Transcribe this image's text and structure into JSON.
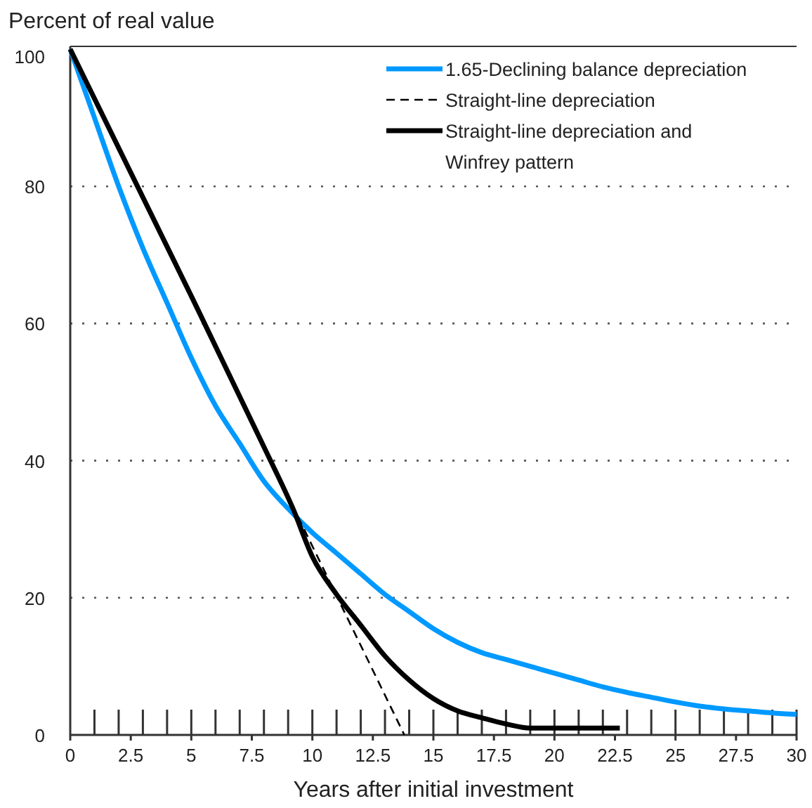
{
  "chart_data": {
    "type": "line",
    "ylabel": "Percent of real value",
    "xlabel": "Years after initial investment",
    "xlim": [
      0,
      30
    ],
    "ylim": [
      0,
      100
    ],
    "xticks": [
      0,
      2.5,
      5,
      7.5,
      10,
      12.5,
      15,
      17.5,
      20,
      22.5,
      25,
      27.5,
      30
    ],
    "yticks": [
      0,
      20,
      40,
      60,
      80,
      100
    ],
    "grid": "y",
    "legend": "top right",
    "marker": "none",
    "series": [
      {
        "name": "1.65-Declining balance depreciation",
        "color": "#0099ff",
        "line_style": "solid",
        "x": [
          0,
          1,
          2,
          3,
          4,
          5,
          6,
          7,
          8,
          9,
          10,
          11,
          12,
          13,
          14,
          15,
          16,
          17,
          18,
          19,
          20,
          21,
          22,
          23,
          24,
          25,
          26,
          27,
          28,
          29,
          30
        ],
        "values": [
          100,
          90,
          80,
          71,
          63,
          55,
          48,
          42.5,
          37,
          33,
          29.5,
          26.5,
          23.5,
          20.5,
          18,
          15.5,
          13.5,
          12,
          11,
          10,
          9,
          8,
          7,
          6.2,
          5.5,
          4.8,
          4.2,
          3.8,
          3.5,
          3.2,
          3
        ]
      },
      {
        "name": "Straight-line depreciation",
        "color": "#000000",
        "line_style": "dashed",
        "x": [
          0,
          13.8
        ],
        "values": [
          100,
          0
        ]
      },
      {
        "name": "Straight-line depreciation and Winfrey pattern",
        "color": "#000000",
        "line_style": "solid",
        "x": [
          0,
          5,
          8,
          9.2,
          10,
          11,
          12,
          13,
          14,
          15,
          16,
          17,
          18,
          19,
          22.7
        ],
        "values": [
          100,
          64,
          42,
          33,
          26,
          20.5,
          16,
          11.5,
          8,
          5.3,
          3.5,
          2.5,
          1.6,
          1,
          1
        ]
      }
    ]
  }
}
